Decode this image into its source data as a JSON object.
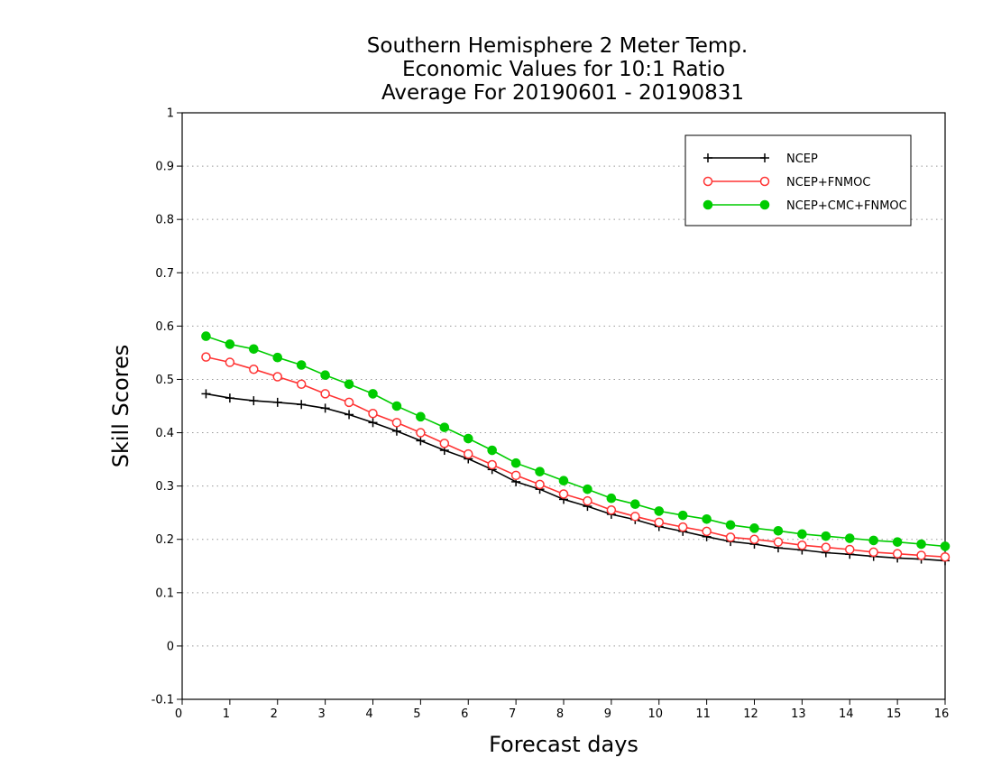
{
  "chart_data": {
    "type": "line",
    "title_lines": [
      "Southern Hemisphere 2 Meter Temp.",
      "Economic Values for 10:1 Ratio",
      "Average For 20190601 - 20190831"
    ],
    "xlabel": "Forecast days",
    "ylabel": "Skill Scores",
    "xlim": [
      0,
      16
    ],
    "ylim": [
      -0.1,
      1
    ],
    "x_ticks": [
      0,
      1,
      2,
      3,
      4,
      5,
      6,
      7,
      8,
      9,
      10,
      11,
      12,
      13,
      14,
      15,
      16
    ],
    "y_ticks": [
      -0.1,
      0,
      0.1,
      0.2,
      0.3,
      0.4,
      0.5,
      0.6,
      0.7,
      0.8,
      0.9,
      1
    ],
    "y_tick_labels": [
      "-0.1",
      "0",
      "0.1",
      "0.2",
      "0.3",
      "0.4",
      "0.5",
      "0.6",
      "0.7",
      "0.8",
      "0.9",
      "1"
    ],
    "grid": "horizontal dotted",
    "legend_position": "top-right",
    "x": [
      0.5,
      1,
      1.5,
      2,
      2.5,
      3,
      3.5,
      4,
      4.5,
      5,
      5.5,
      6,
      6.5,
      7,
      7.5,
      8,
      8.5,
      9,
      9.5,
      10,
      10.5,
      11,
      11.5,
      12,
      12.5,
      13,
      13.5,
      14,
      14.5,
      15,
      15.5,
      16
    ],
    "series": [
      {
        "name": "NCEP",
        "color": "#000000",
        "marker": "plus",
        "values": [
          0.473,
          0.465,
          0.46,
          0.457,
          0.453,
          0.446,
          0.434,
          0.419,
          0.403,
          0.385,
          0.367,
          0.351,
          0.331,
          0.308,
          0.294,
          0.275,
          0.262,
          0.247,
          0.237,
          0.224,
          0.215,
          0.205,
          0.196,
          0.191,
          0.184,
          0.18,
          0.175,
          0.172,
          0.168,
          0.165,
          0.163,
          0.16
        ]
      },
      {
        "name": "NCEP+FNMOC",
        "color": "#ff3333",
        "marker": "open-circle",
        "values": [
          0.542,
          0.532,
          0.519,
          0.505,
          0.491,
          0.473,
          0.457,
          0.436,
          0.419,
          0.4,
          0.38,
          0.36,
          0.34,
          0.32,
          0.303,
          0.285,
          0.272,
          0.255,
          0.243,
          0.232,
          0.223,
          0.215,
          0.204,
          0.2,
          0.195,
          0.189,
          0.185,
          0.181,
          0.176,
          0.173,
          0.17,
          0.167
        ]
      },
      {
        "name": "NCEP+CMC+FNMOC",
        "color": "#00cc00",
        "marker": "filled-circle",
        "values": [
          0.581,
          0.566,
          0.557,
          0.541,
          0.527,
          0.508,
          0.491,
          0.473,
          0.45,
          0.43,
          0.41,
          0.389,
          0.367,
          0.343,
          0.327,
          0.31,
          0.294,
          0.277,
          0.266,
          0.253,
          0.245,
          0.238,
          0.227,
          0.221,
          0.216,
          0.21,
          0.206,
          0.202,
          0.198,
          0.195,
          0.191,
          0.187
        ]
      }
    ]
  }
}
